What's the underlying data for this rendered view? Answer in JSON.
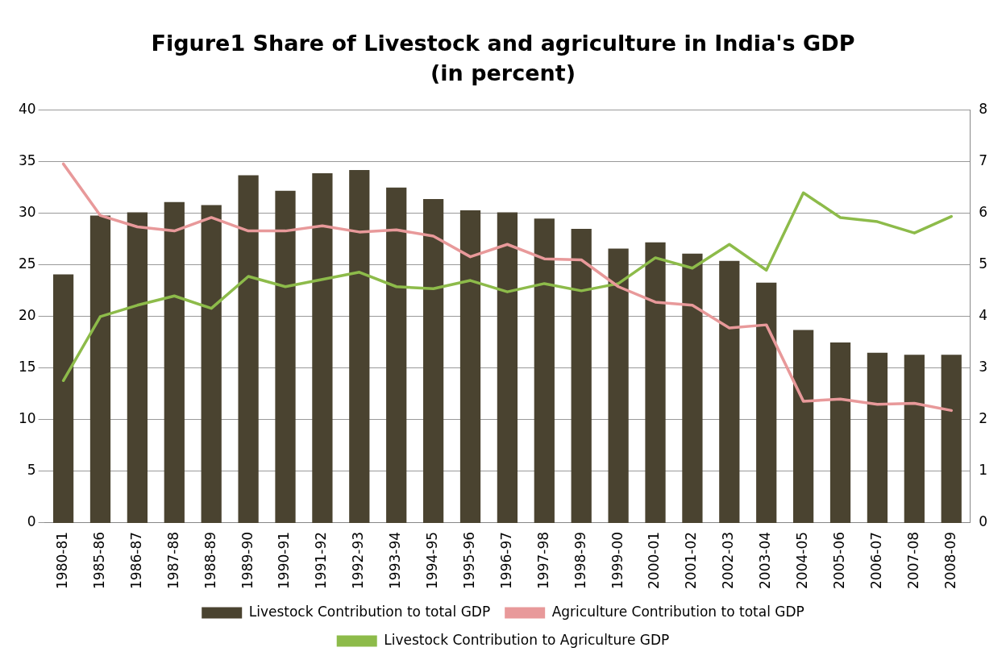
{
  "chart_data": {
    "type": "bar",
    "title": "Figure1 Share of Livestock and agriculture in India's GDP",
    "subtitle": "(in percent)",
    "categories": [
      "1980-81",
      "1985-86",
      "1986-87",
      "1987-88",
      "1988-89",
      "1989-90",
      "1990-91",
      "1991-92",
      "1992-93",
      "1993-94",
      "1994-95",
      "1995-96",
      "1996-97",
      "1997-98",
      "1998-99",
      "1999-00",
      "2000-01",
      "2001-02",
      "2002-03",
      "2003-04",
      "2004-05",
      "2005-06",
      "2006-07",
      "2007-08",
      "2008-09"
    ],
    "series": [
      {
        "name": "Livestock Contribution to total GDP",
        "axis": "y2",
        "color": "#4a4330",
        "values": [
          4.82,
          5.96,
          6.02,
          6.22,
          6.16,
          6.74,
          6.44,
          6.78,
          6.84,
          6.5,
          6.28,
          6.06,
          6.02,
          5.9,
          5.7,
          5.32,
          5.44,
          5.22,
          5.08,
          4.66,
          3.74,
          3.5,
          3.3,
          3.26,
          3.26
        ]
      },
      {
        "name": "Agriculture Contribution to total GDP",
        "type": "line",
        "color": "#e8999a",
        "values": [
          34.8,
          29.8,
          28.7,
          28.3,
          29.6,
          28.3,
          28.3,
          28.8,
          28.2,
          28.4,
          27.8,
          25.8,
          27.0,
          25.6,
          25.5,
          22.9,
          21.4,
          21.1,
          18.9,
          19.2,
          11.8,
          12.0,
          11.5,
          11.6,
          10.9
        ]
      },
      {
        "name": "Livestock Contribution to Agriculture GDP",
        "type": "line",
        "color": "#8dbb4a",
        "values": [
          13.8,
          20.0,
          21.1,
          22.0,
          20.8,
          23.9,
          22.9,
          23.6,
          24.3,
          22.9,
          22.7,
          23.5,
          22.4,
          23.2,
          22.5,
          23.2,
          25.7,
          24.7,
          27.0,
          24.5,
          32.0,
          29.6,
          29.2,
          28.1,
          29.7
        ]
      }
    ],
    "ylim": [
      0,
      40
    ],
    "yticks": [
      0,
      5,
      10,
      15,
      20,
      25,
      30,
      35,
      40
    ],
    "y2lim": [
      0,
      8
    ],
    "y2ticks": [
      0,
      1,
      2,
      3,
      4,
      5,
      6,
      7,
      8
    ],
    "grid": "y",
    "legend": "bottom",
    "marker": "none"
  }
}
